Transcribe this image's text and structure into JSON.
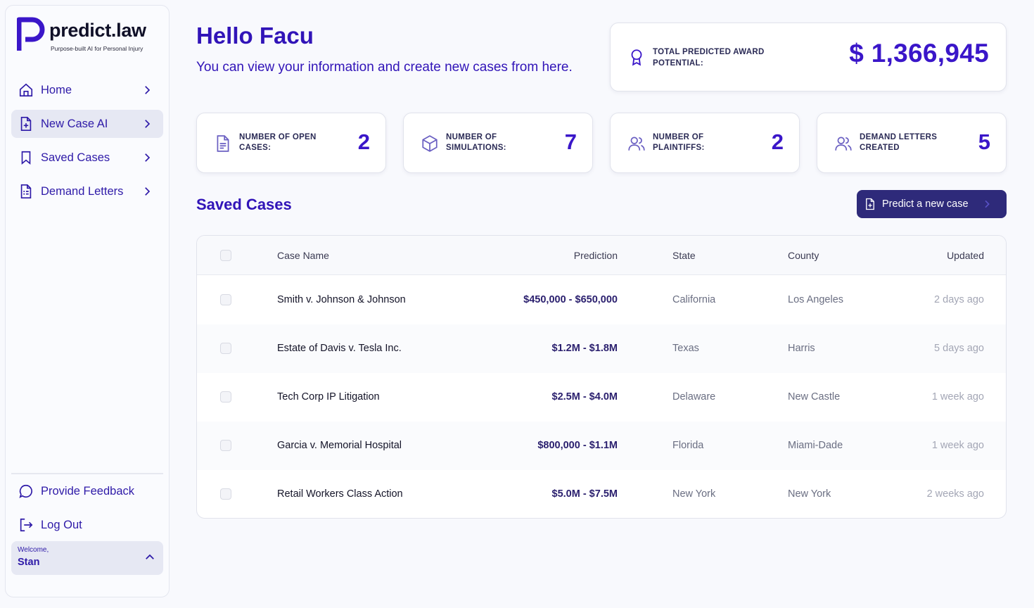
{
  "brand": {
    "name": "predict.law",
    "tagline": "Purpose-built AI for Personal Injury",
    "accent": "#3114b8"
  },
  "sidebar": {
    "items": [
      {
        "label": "Home",
        "icon": "home-icon",
        "active": false
      },
      {
        "label": "New Case AI",
        "icon": "file-plus-icon",
        "active": true
      },
      {
        "label": "Saved Cases",
        "icon": "bookmark-icon",
        "active": false
      },
      {
        "label": "Demand Letters",
        "icon": "file-text-icon",
        "active": false
      }
    ],
    "bottom_items": [
      {
        "label": "Provide Feedback",
        "icon": "chat-bubble-icon"
      },
      {
        "label": "Log Out",
        "icon": "logout-icon"
      }
    ],
    "welcome": {
      "label": "Welcome,",
      "name": "Stan"
    }
  },
  "header": {
    "greeting": "Hello Facu",
    "subtitle": "You can view your information and create new cases from here."
  },
  "award": {
    "label": "TOTAL PREDICTED AWARD POTENTIAL:",
    "value": "$ 1,366,945",
    "icon": "award-icon"
  },
  "stats": [
    {
      "label": "NUMBER OF OPEN CASES:",
      "value": "2",
      "icon": "document-icon"
    },
    {
      "label": "NUMBER OF SIMULATIONS:",
      "value": "7",
      "icon": "cube-icon"
    },
    {
      "label": "NUMBER OF PLAINTIFFS:",
      "value": "2",
      "icon": "users-icon"
    },
    {
      "label": "DEMAND LETTERS CREATED",
      "value": "5",
      "icon": "users-icon"
    }
  ],
  "saved_cases": {
    "title": "Saved Cases",
    "predict_button": "Predict a new case",
    "columns": [
      "Case Name",
      "Prediction",
      "State",
      "County",
      "Updated"
    ],
    "rows": [
      {
        "name": "Smith v. Johnson & Johnson",
        "prediction": "$450,000 - $650,000",
        "state": "California",
        "county": "Los Angeles",
        "updated": "2 days ago"
      },
      {
        "name": "Estate of Davis v. Tesla Inc.",
        "prediction": "$1.2M - $1.8M",
        "state": "Texas",
        "county": "Harris",
        "updated": "5 days ago"
      },
      {
        "name": "Tech Corp IP Litigation",
        "prediction": "$2.5M - $4.0M",
        "state": "Delaware",
        "county": "New Castle",
        "updated": "1 week ago"
      },
      {
        "name": "Garcia v. Memorial Hospital",
        "prediction": "$800,000 - $1.1M",
        "state": "Florida",
        "county": "Miami-Dade",
        "updated": "1 week ago"
      },
      {
        "name": "Retail Workers Class Action",
        "prediction": "$5.0M - $7.5M",
        "state": "New York",
        "county": "New York",
        "updated": "2 weeks ago"
      }
    ]
  }
}
